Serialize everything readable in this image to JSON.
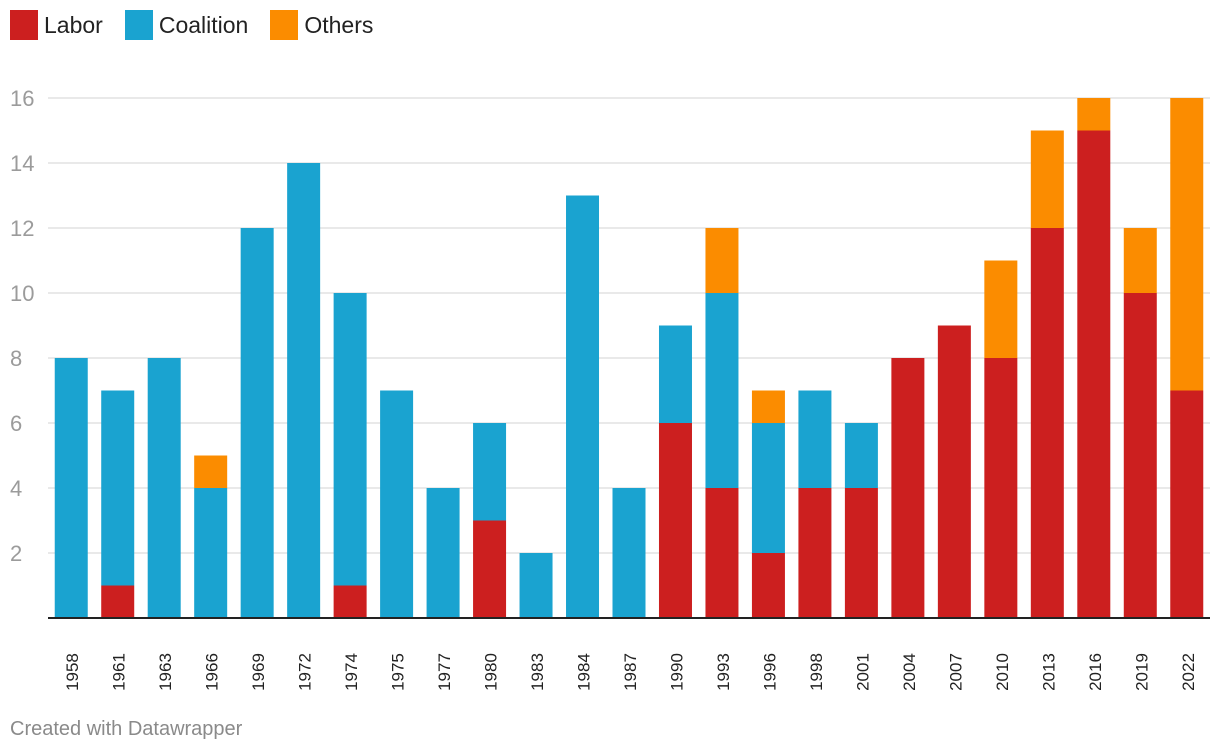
{
  "colors": {
    "labor": "#cc1f1f",
    "coalition": "#1aa3d0",
    "others": "#fb8c00",
    "grid": "#e2e2e2",
    "axis": "#222222",
    "tick_text": "#9b9b9b"
  },
  "legend": [
    {
      "label": "Labor",
      "color": "#cc1f1f"
    },
    {
      "label": "Coalition",
      "color": "#1aa3d0"
    },
    {
      "label": "Others",
      "color": "#fb8c00"
    }
  ],
  "footer": "Created with Datawrapper",
  "chart_data": {
    "type": "bar",
    "stacked": true,
    "categories": [
      "1958",
      "1961",
      "1963",
      "1966",
      "1969",
      "1972",
      "1974",
      "1975",
      "1977",
      "1980",
      "1983",
      "1984",
      "1987",
      "1990",
      "1993",
      "1996",
      "1998",
      "2001",
      "2004",
      "2007",
      "2010",
      "2013",
      "2016",
      "2019",
      "2022"
    ],
    "series": [
      {
        "name": "Labor",
        "color": "#cc1f1f",
        "values": [
          0,
          1,
          0,
          0,
          0,
          0,
          1,
          0,
          0,
          3,
          0,
          0,
          0,
          6,
          4,
          2,
          4,
          4,
          8,
          9,
          8,
          12,
          15,
          10,
          7
        ]
      },
      {
        "name": "Coalition",
        "color": "#1aa3d0",
        "values": [
          8,
          6,
          8,
          4,
          12,
          14,
          9,
          7,
          4,
          3,
          2,
          13,
          4,
          3,
          6,
          4,
          3,
          2,
          0,
          0,
          0,
          0,
          0,
          0,
          0
        ]
      },
      {
        "name": "Others",
        "color": "#fb8c00",
        "values": [
          0,
          0,
          0,
          1,
          0,
          0,
          0,
          0,
          0,
          0,
          0,
          0,
          0,
          0,
          2,
          1,
          0,
          0,
          0,
          0,
          3,
          3,
          1,
          2,
          9
        ]
      }
    ],
    "yticks": [
      2,
      4,
      6,
      8,
      10,
      12,
      14,
      16
    ],
    "ylim": [
      0,
      16
    ],
    "grid": true,
    "legend_position": "top-left",
    "title": "",
    "xlabel": "",
    "ylabel": ""
  }
}
